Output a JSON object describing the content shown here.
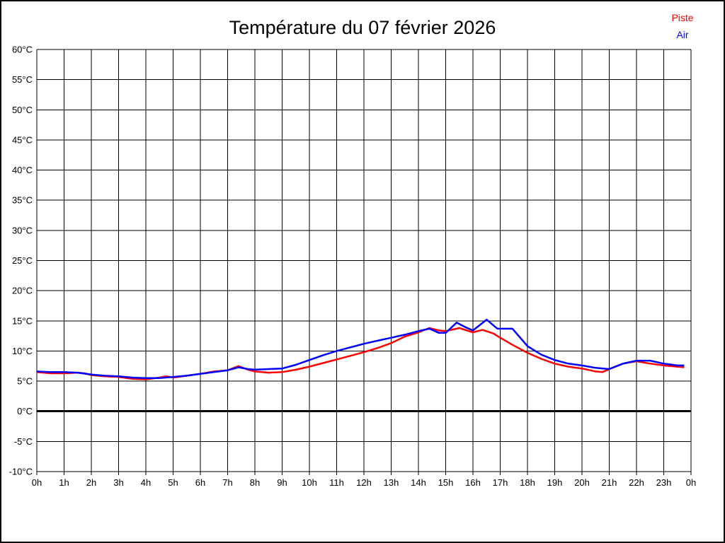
{
  "header": {
    "title": "Température du 07 février 2026"
  },
  "legend": [
    {
      "label": "Piste",
      "color": "#ff0000"
    },
    {
      "label": "Air",
      "color": "#0000ff"
    }
  ],
  "chart_data": {
    "type": "line",
    "title": "Température du 07 février 2026",
    "xlabel": "",
    "ylabel": "",
    "x_unit": "hour of day",
    "xlim": [
      0,
      24
    ],
    "ylim": [
      -10,
      60
    ],
    "grid": true,
    "grid_color": "#000000",
    "background": "#ffffff",
    "x_tick_labels": [
      "0h",
      "1h",
      "2h",
      "3h",
      "4h",
      "5h",
      "6h",
      "7h",
      "8h",
      "9h",
      "10h",
      "11h",
      "12h",
      "13h",
      "14h",
      "15h",
      "16h",
      "17h",
      "18h",
      "19h",
      "20h",
      "21h",
      "22h",
      "23h",
      "0h"
    ],
    "y_tick_values": [
      60,
      55,
      50,
      45,
      40,
      35,
      30,
      25,
      20,
      15,
      10,
      5,
      0,
      -5,
      -10
    ],
    "y_tick_labels": [
      "60°C",
      "55°C",
      "50°C",
      "45°C",
      "40°C",
      "35°C",
      "30°C",
      "25°C",
      "20°C",
      "15°C",
      "10°C",
      "5°C",
      "0°C",
      "-5°C",
      "-10°C"
    ],
    "zero_line": {
      "value": 0,
      "color": "#000000",
      "width": 3
    },
    "legend_position": "top-right",
    "series": [
      {
        "name": "Piste",
        "color": "#ff0000",
        "points": [
          [
            0,
            6.5
          ],
          [
            0.5,
            6.3
          ],
          [
            1,
            6.3
          ],
          [
            1.5,
            6.4
          ],
          [
            1.75,
            6.3
          ],
          [
            2,
            6.0
          ],
          [
            2.5,
            5.8
          ],
          [
            3,
            5.7
          ],
          [
            3.5,
            5.4
          ],
          [
            4,
            5.3
          ],
          [
            4.5,
            5.6
          ],
          [
            4.75,
            5.8
          ],
          [
            5,
            5.6
          ],
          [
            5.5,
            5.9
          ],
          [
            6,
            6.2
          ],
          [
            6.5,
            6.6
          ],
          [
            7,
            6.8
          ],
          [
            7.4,
            7.5
          ],
          [
            7.75,
            6.9
          ],
          [
            8,
            6.6
          ],
          [
            8.5,
            6.4
          ],
          [
            9,
            6.5
          ],
          [
            9.5,
            6.9
          ],
          [
            10,
            7.4
          ],
          [
            10.5,
            8.0
          ],
          [
            11,
            8.6
          ],
          [
            11.5,
            9.2
          ],
          [
            12,
            9.8
          ],
          [
            12.5,
            10.5
          ],
          [
            13,
            11.3
          ],
          [
            13.5,
            12.4
          ],
          [
            14,
            13.1
          ],
          [
            14.4,
            13.8
          ],
          [
            14.75,
            13.4
          ],
          [
            15,
            13.3
          ],
          [
            15.5,
            13.8
          ],
          [
            16,
            13.1
          ],
          [
            16.35,
            13.5
          ],
          [
            16.75,
            12.9
          ],
          [
            17,
            12.2
          ],
          [
            17.5,
            10.9
          ],
          [
            18,
            9.7
          ],
          [
            18.5,
            8.7
          ],
          [
            19,
            7.9
          ],
          [
            19.5,
            7.4
          ],
          [
            20,
            7.1
          ],
          [
            20.5,
            6.6
          ],
          [
            20.75,
            6.5
          ],
          [
            21,
            7.0
          ],
          [
            21.5,
            7.9
          ],
          [
            22,
            8.3
          ],
          [
            22.5,
            7.9
          ],
          [
            23,
            7.6
          ],
          [
            23.5,
            7.4
          ],
          [
            23.75,
            7.3
          ]
        ]
      },
      {
        "name": "Air",
        "color": "#0000ff",
        "points": [
          [
            0,
            6.6
          ],
          [
            0.5,
            6.5
          ],
          [
            1,
            6.5
          ],
          [
            1.5,
            6.4
          ],
          [
            2,
            6.1
          ],
          [
            2.5,
            5.9
          ],
          [
            3,
            5.8
          ],
          [
            3.5,
            5.6
          ],
          [
            4,
            5.5
          ],
          [
            4.5,
            5.5
          ],
          [
            5,
            5.7
          ],
          [
            5.5,
            5.9
          ],
          [
            6,
            6.2
          ],
          [
            6.5,
            6.5
          ],
          [
            7,
            6.8
          ],
          [
            7.4,
            7.3
          ],
          [
            7.75,
            7.0
          ],
          [
            8,
            6.9
          ],
          [
            8.5,
            7.0
          ],
          [
            9,
            7.1
          ],
          [
            9.5,
            7.7
          ],
          [
            10,
            8.5
          ],
          [
            10.5,
            9.3
          ],
          [
            11,
            10.0
          ],
          [
            11.5,
            10.6
          ],
          [
            12,
            11.2
          ],
          [
            12.5,
            11.7
          ],
          [
            13,
            12.2
          ],
          [
            13.5,
            12.7
          ],
          [
            14,
            13.3
          ],
          [
            14.4,
            13.7
          ],
          [
            14.75,
            13.0
          ],
          [
            15,
            13.0
          ],
          [
            15.4,
            14.7
          ],
          [
            15.75,
            13.9
          ],
          [
            16,
            13.4
          ],
          [
            16.5,
            15.2
          ],
          [
            16.9,
            13.7
          ],
          [
            17.45,
            13.7
          ],
          [
            18,
            10.8
          ],
          [
            18.5,
            9.4
          ],
          [
            19,
            8.5
          ],
          [
            19.5,
            7.9
          ],
          [
            20,
            7.6
          ],
          [
            20.5,
            7.2
          ],
          [
            21,
            7.0
          ],
          [
            21.5,
            7.9
          ],
          [
            22,
            8.4
          ],
          [
            22.5,
            8.4
          ],
          [
            23,
            7.9
          ],
          [
            23.5,
            7.6
          ],
          [
            23.75,
            7.6
          ]
        ]
      }
    ]
  }
}
